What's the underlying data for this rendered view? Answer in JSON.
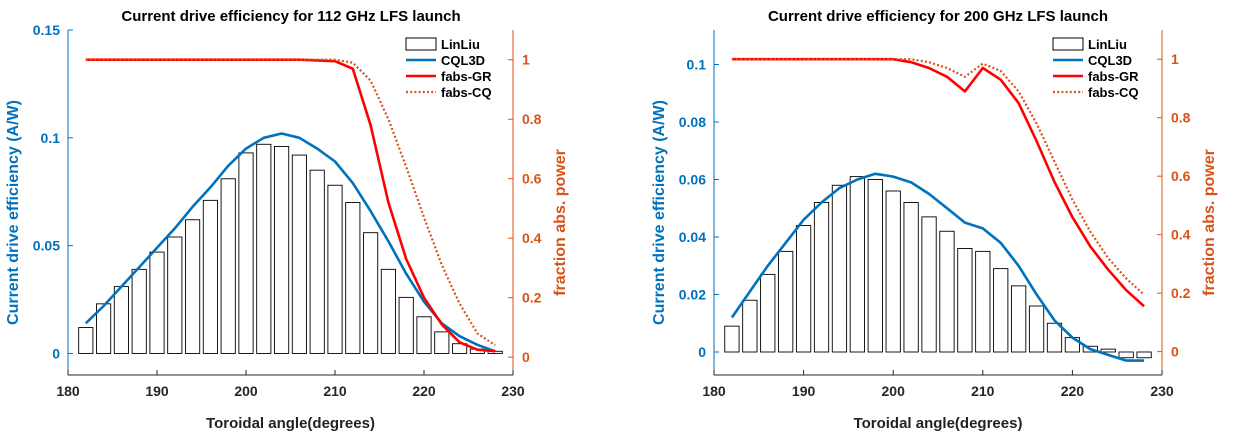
{
  "chart_data": [
    {
      "type": "bar",
      "title": "Current drive efficiency for 112 GHz LFS launch",
      "xlabel": "Toroidal angle(degrees)",
      "ylabel": "Current drive efficiency (A/W)",
      "ylabel_right": "fraction abs. power",
      "xlim": [
        180,
        230
      ],
      "ylim": [
        -0.01,
        0.15
      ],
      "ylim_right": [
        -0.06,
        1.1
      ],
      "xticks": [
        180,
        190,
        200,
        210,
        220,
        230
      ],
      "xtick_labels": [
        "180",
        "190",
        "200",
        "210",
        "220",
        "230"
      ],
      "yticks": [
        0,
        0.05,
        0.1,
        0.15
      ],
      "ytick_labels": [
        "0",
        "0.05",
        "0.1",
        "0.15"
      ],
      "yticks_right": [
        0,
        0.2,
        0.4,
        0.6,
        0.8,
        1
      ],
      "ytick_labels_right": [
        "0",
        "0.2",
        "0.4",
        "0.6",
        "0.8",
        "1"
      ],
      "legend_position": "top-right",
      "grid": false,
      "colors": {
        "left_axis": "#0072BD",
        "right_axis": "#D95319",
        "bars": "#000000",
        "cql3d": "#0072BD",
        "fabs_gr": "#FF0000",
        "fabs_cq": "#D95319"
      },
      "series": [
        {
          "name": "LinLiu",
          "kind": "bar",
          "axis": "left",
          "x": [
            182,
            184,
            186,
            188,
            190,
            192,
            194,
            196,
            198,
            200,
            202,
            204,
            206,
            208,
            210,
            212,
            214,
            216,
            218,
            220,
            222,
            224,
            226,
            228
          ],
          "values": [
            0.012,
            0.023,
            0.031,
            0.039,
            0.047,
            0.054,
            0.062,
            0.071,
            0.081,
            0.093,
            0.097,
            0.096,
            0.092,
            0.085,
            0.078,
            0.07,
            0.056,
            0.039,
            0.026,
            0.017,
            0.01,
            0.0045,
            0.002,
            0.001
          ]
        },
        {
          "name": "CQL3D",
          "kind": "line",
          "axis": "left",
          "style": "solid",
          "x": [
            182,
            184,
            186,
            188,
            190,
            192,
            194,
            196,
            198,
            200,
            202,
            204,
            206,
            208,
            210,
            212,
            214,
            216,
            218,
            220,
            222,
            224,
            226,
            228
          ],
          "values": [
            0.014,
            0.022,
            0.031,
            0.04,
            0.049,
            0.058,
            0.068,
            0.077,
            0.087,
            0.095,
            0.1,
            0.102,
            0.1,
            0.095,
            0.089,
            0.079,
            0.066,
            0.052,
            0.037,
            0.024,
            0.014,
            0.008,
            0.004,
            0.001
          ]
        },
        {
          "name": "fabs-GR",
          "kind": "line",
          "axis": "right",
          "style": "solid",
          "x": [
            182,
            190,
            200,
            206,
            210,
            212,
            214,
            216,
            218,
            220,
            222,
            224,
            226,
            228
          ],
          "values": [
            1.0,
            1.0,
            1.0,
            1.0,
            0.995,
            0.97,
            0.78,
            0.52,
            0.33,
            0.2,
            0.11,
            0.05,
            0.025,
            0.02
          ]
        },
        {
          "name": "fabs-CQ",
          "kind": "line",
          "axis": "right",
          "style": "dotted",
          "x": [
            182,
            190,
            200,
            206,
            210,
            212,
            214,
            216,
            218,
            220,
            222,
            224,
            226,
            228
          ],
          "values": [
            1.0,
            1.0,
            1.0,
            1.0,
            1.0,
            0.99,
            0.93,
            0.8,
            0.64,
            0.47,
            0.31,
            0.18,
            0.08,
            0.04
          ]
        }
      ]
    },
    {
      "type": "bar",
      "title": "Current drive efficiency for 200 GHz LFS launch",
      "xlabel": "Toroidal angle(degrees)",
      "ylabel": "Current drive efficiency (A/W)",
      "ylabel_right": "fraction abs. power",
      "xlim": [
        180,
        230
      ],
      "ylim": [
        -0.008,
        0.112
      ],
      "ylim_right": [
        -0.08,
        1.1
      ],
      "xticks": [
        180,
        190,
        200,
        210,
        220,
        230
      ],
      "xtick_labels": [
        "180",
        "190",
        "200",
        "210",
        "220",
        "230"
      ],
      "yticks": [
        0,
        0.02,
        0.04,
        0.06,
        0.08,
        0.1
      ],
      "ytick_labels": [
        "0",
        "0.02",
        "0.04",
        "0.06",
        "0.08",
        "0.1"
      ],
      "yticks_right": [
        0,
        0.2,
        0.4,
        0.6,
        0.8,
        1
      ],
      "ytick_labels_right": [
        "0",
        "0.2",
        "0.4",
        "0.6",
        "0.8",
        "1"
      ],
      "legend_position": "top-right",
      "grid": false,
      "colors": {
        "left_axis": "#0072BD",
        "right_axis": "#D95319",
        "bars": "#000000",
        "cql3d": "#0072BD",
        "fabs_gr": "#FF0000",
        "fabs_cq": "#D95319"
      },
      "series": [
        {
          "name": "LinLiu",
          "kind": "bar",
          "axis": "left",
          "x": [
            182,
            184,
            186,
            188,
            190,
            192,
            194,
            196,
            198,
            200,
            202,
            204,
            206,
            208,
            210,
            212,
            214,
            216,
            218,
            220,
            222,
            224,
            226,
            228
          ],
          "values": [
            0.009,
            0.018,
            0.027,
            0.035,
            0.044,
            0.052,
            0.058,
            0.061,
            0.06,
            0.056,
            0.052,
            0.047,
            0.042,
            0.036,
            0.035,
            0.029,
            0.023,
            0.016,
            0.01,
            0.005,
            0.002,
            0.001,
            -0.002,
            -0.002
          ]
        },
        {
          "name": "CQL3D",
          "kind": "line",
          "axis": "left",
          "style": "solid",
          "x": [
            182,
            184,
            186,
            188,
            190,
            192,
            194,
            196,
            198,
            200,
            202,
            204,
            206,
            208,
            210,
            212,
            214,
            216,
            218,
            220,
            222,
            224,
            226,
            228
          ],
          "values": [
            0.012,
            0.021,
            0.03,
            0.038,
            0.046,
            0.052,
            0.057,
            0.06,
            0.062,
            0.061,
            0.059,
            0.055,
            0.05,
            0.045,
            0.043,
            0.038,
            0.03,
            0.02,
            0.011,
            0.005,
            0.001,
            -0.001,
            -0.003,
            -0.003
          ]
        },
        {
          "name": "fabs-GR",
          "kind": "line",
          "axis": "right",
          "style": "solid",
          "x": [
            182,
            190,
            200,
            202,
            204,
            206,
            208,
            210,
            212,
            214,
            216,
            218,
            220,
            222,
            224,
            226,
            228
          ],
          "values": [
            1.0,
            1.0,
            1.0,
            0.99,
            0.97,
            0.94,
            0.89,
            0.97,
            0.93,
            0.85,
            0.72,
            0.58,
            0.46,
            0.36,
            0.28,
            0.21,
            0.155
          ]
        },
        {
          "name": "fabs-CQ",
          "kind": "line",
          "axis": "right",
          "style": "dotted",
          "x": [
            182,
            190,
            200,
            202,
            204,
            206,
            208,
            210,
            212,
            214,
            216,
            218,
            220,
            222,
            224,
            226,
            228
          ],
          "values": [
            1.0,
            1.0,
            1.0,
            1.0,
            0.99,
            0.97,
            0.94,
            0.985,
            0.96,
            0.89,
            0.78,
            0.65,
            0.52,
            0.41,
            0.32,
            0.25,
            0.195
          ]
        }
      ]
    }
  ]
}
